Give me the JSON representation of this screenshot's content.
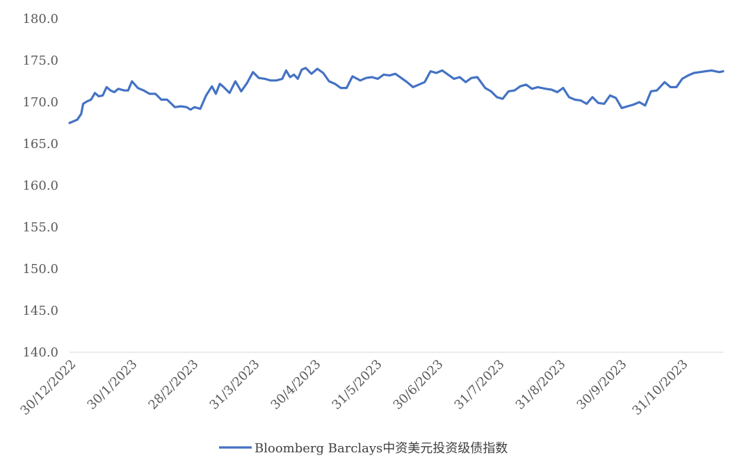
{
  "chart_data": {
    "type": "line",
    "title": "",
    "xlabel": "",
    "ylabel": "",
    "ylim": [
      140.0,
      180.0
    ],
    "y_ticks": [
      "180.0",
      "175.0",
      "170.0",
      "165.0",
      "160.0",
      "155.0",
      "150.0",
      "145.0",
      "140.0"
    ],
    "x_tick_labels": [
      "30/12/2022",
      "30/1/2023",
      "28/2/2023",
      "31/3/2023",
      "30/4/2023",
      "31/5/2023",
      "30/6/2023",
      "31/7/2023",
      "31/8/2023",
      "30/9/2023",
      "31/10/2023"
    ],
    "grid": false,
    "legend_position": "bottom",
    "line_color": "#4472C4",
    "series": [
      {
        "name": "Bloomberg Barclays中资美元投资级债指数",
        "x": [
          "2022-12-30",
          "2023-01-03",
          "2023-01-05",
          "2023-01-06",
          "2023-01-08",
          "2023-01-10",
          "2023-01-12",
          "2023-01-14",
          "2023-01-16",
          "2023-01-18",
          "2023-01-20",
          "2023-01-22",
          "2023-01-24",
          "2023-01-27",
          "2023-01-29",
          "2023-01-31",
          "2023-02-03",
          "2023-02-06",
          "2023-02-09",
          "2023-02-12",
          "2023-02-15",
          "2023-02-18",
          "2023-02-22",
          "2023-02-25",
          "2023-02-28",
          "2023-03-02",
          "2023-03-04",
          "2023-03-07",
          "2023-03-10",
          "2023-03-13",
          "2023-03-15",
          "2023-03-17",
          "2023-03-19",
          "2023-03-22",
          "2023-03-25",
          "2023-03-28",
          "2023-03-31",
          "2023-04-03",
          "2023-04-06",
          "2023-04-09",
          "2023-04-12",
          "2023-04-15",
          "2023-04-18",
          "2023-04-20",
          "2023-04-22",
          "2023-04-24",
          "2023-04-26",
          "2023-04-28",
          "2023-04-30",
          "2023-05-03",
          "2023-05-06",
          "2023-05-09",
          "2023-05-12",
          "2023-05-15",
          "2023-05-18",
          "2023-05-21",
          "2023-05-24",
          "2023-05-28",
          "2023-05-31",
          "2023-06-03",
          "2023-06-06",
          "2023-06-09",
          "2023-06-12",
          "2023-06-15",
          "2023-06-18",
          "2023-06-21",
          "2023-06-24",
          "2023-06-27",
          "2023-06-30",
          "2023-07-03",
          "2023-07-06",
          "2023-07-09",
          "2023-07-12",
          "2023-07-15",
          "2023-07-18",
          "2023-07-21",
          "2023-07-24",
          "2023-07-27",
          "2023-07-31",
          "2023-08-03",
          "2023-08-06",
          "2023-08-09",
          "2023-08-12",
          "2023-08-15",
          "2023-08-18",
          "2023-08-21",
          "2023-08-24",
          "2023-08-27",
          "2023-08-31",
          "2023-09-03",
          "2023-09-06",
          "2023-09-09",
          "2023-09-12",
          "2023-09-15",
          "2023-09-18",
          "2023-09-21",
          "2023-09-24",
          "2023-09-27",
          "2023-09-30",
          "2023-10-03",
          "2023-10-06",
          "2023-10-09",
          "2023-10-12",
          "2023-10-15",
          "2023-10-18",
          "2023-10-21",
          "2023-10-24",
          "2023-10-27",
          "2023-10-31",
          "2023-11-03",
          "2023-11-06",
          "2023-11-09",
          "2023-11-12",
          "2023-11-15",
          "2023-11-18",
          "2023-11-21",
          "2023-11-24",
          "2023-11-28",
          "2023-11-30"
        ],
        "values": [
          167.5,
          167.9,
          168.6,
          169.8,
          170.1,
          170.3,
          171.1,
          170.7,
          170.8,
          171.8,
          171.4,
          171.2,
          171.6,
          171.4,
          171.4,
          172.5,
          171.7,
          171.4,
          171.0,
          171.0,
          170.3,
          170.3,
          169.4,
          169.5,
          169.4,
          169.1,
          169.4,
          169.2,
          170.8,
          171.9,
          171.0,
          172.2,
          171.8,
          171.1,
          172.5,
          171.3,
          172.3,
          173.6,
          172.9,
          172.8,
          172.6,
          172.6,
          172.8,
          173.8,
          173.0,
          173.3,
          172.8,
          173.9,
          174.1,
          173.4,
          174.0,
          173.5,
          172.5,
          172.2,
          171.7,
          171.7,
          173.1,
          172.6,
          172.9,
          173.0,
          172.8,
          173.3,
          173.2,
          173.4,
          172.9,
          172.4,
          171.8,
          172.1,
          172.4,
          173.7,
          173.5,
          173.8,
          173.3,
          172.8,
          173.0,
          172.4,
          172.9,
          173.0,
          171.7,
          171.3,
          170.6,
          170.4,
          171.3,
          171.4,
          171.9,
          172.1,
          171.6,
          171.8,
          171.6,
          171.5,
          171.2,
          171.7,
          170.6,
          170.3,
          170.2,
          169.8,
          170.6,
          169.9,
          169.8,
          170.8,
          170.5,
          169.3,
          169.5,
          169.7,
          170.0,
          169.6,
          171.3,
          171.4,
          172.4,
          171.8,
          171.8,
          172.8,
          173.2,
          173.5,
          173.6,
          173.7,
          173.8,
          173.6,
          173.7
        ]
      }
    ]
  }
}
